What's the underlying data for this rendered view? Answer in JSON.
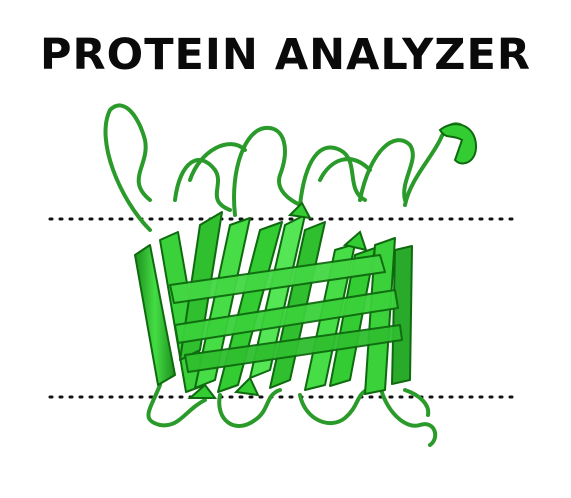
{
  "header": {
    "title": "PROTEIN ANALYZER"
  },
  "figure": {
    "depiction": "protein-barrel-cartoon",
    "colors": {
      "strand": "#33cc33",
      "strand_edge": "#0f6a0f",
      "loop": "#2a9a2a",
      "membrane_dots": "#111111"
    }
  }
}
